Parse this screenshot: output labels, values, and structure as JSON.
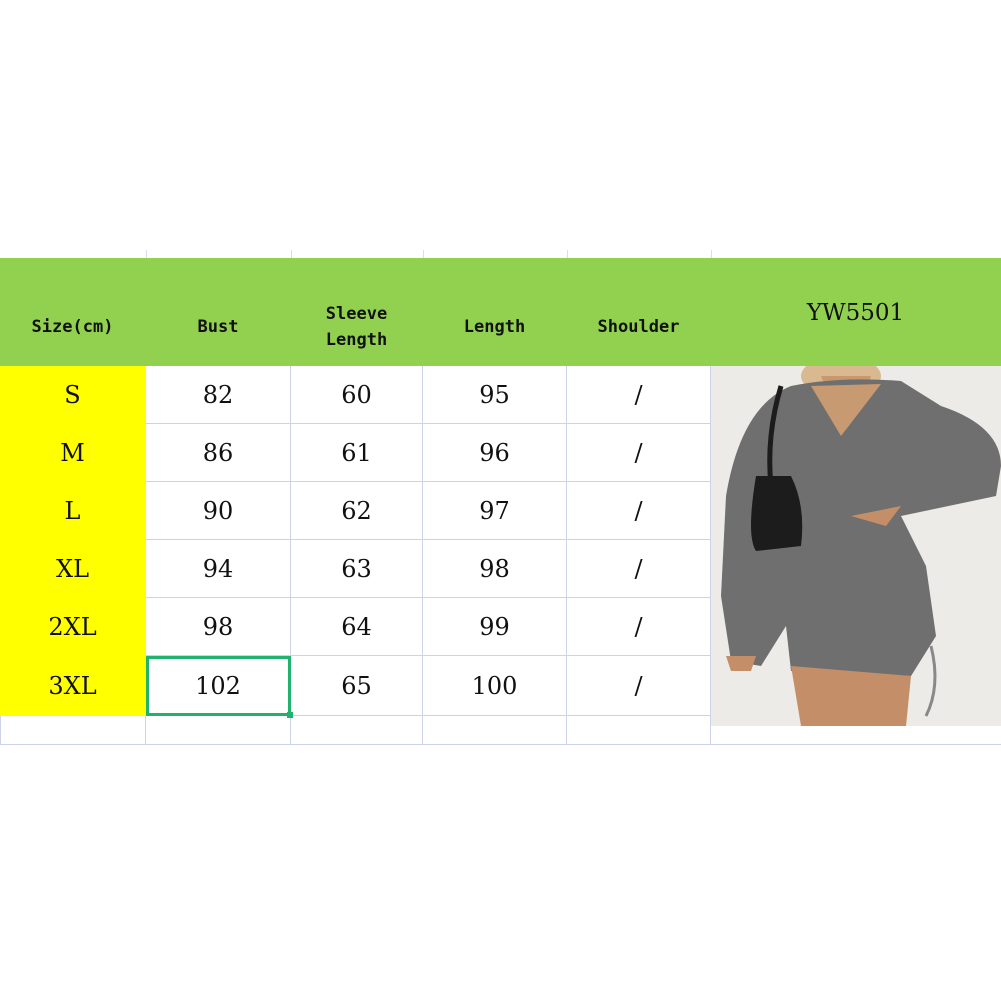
{
  "header": {
    "columns": [
      "Size(cm)",
      "Bust",
      "Sleeve\nLength",
      "Length",
      "Shoulder"
    ],
    "sleeve_line1": "Sleeve",
    "sleeve_line2": "Length",
    "model": "YW5501"
  },
  "rows": [
    {
      "size": "S",
      "bust": "82",
      "sleeve": "60",
      "length": "95",
      "shoulder": "/"
    },
    {
      "size": "M",
      "bust": "86",
      "sleeve": "61",
      "length": "96",
      "shoulder": "/"
    },
    {
      "size": "L",
      "bust": "90",
      "sleeve": "62",
      "length": "97",
      "shoulder": "/"
    },
    {
      "size": "XL",
      "bust": "94",
      "sleeve": "63",
      "length": "98",
      "shoulder": "/"
    },
    {
      "size": "2XL",
      "bust": "98",
      "sleeve": "64",
      "length": "99",
      "shoulder": "/"
    },
    {
      "size": "3XL",
      "bust": "102",
      "sleeve": "65",
      "length": "100",
      "shoulder": "/"
    }
  ],
  "colors": {
    "header": "#92d050",
    "size_column": "#ffff00",
    "selection": "#21b36e",
    "dress": "#707070"
  },
  "photo": {
    "subject": "model wearing grey ribbed long-sleeve ruched mini dress with black shoulder bag"
  }
}
